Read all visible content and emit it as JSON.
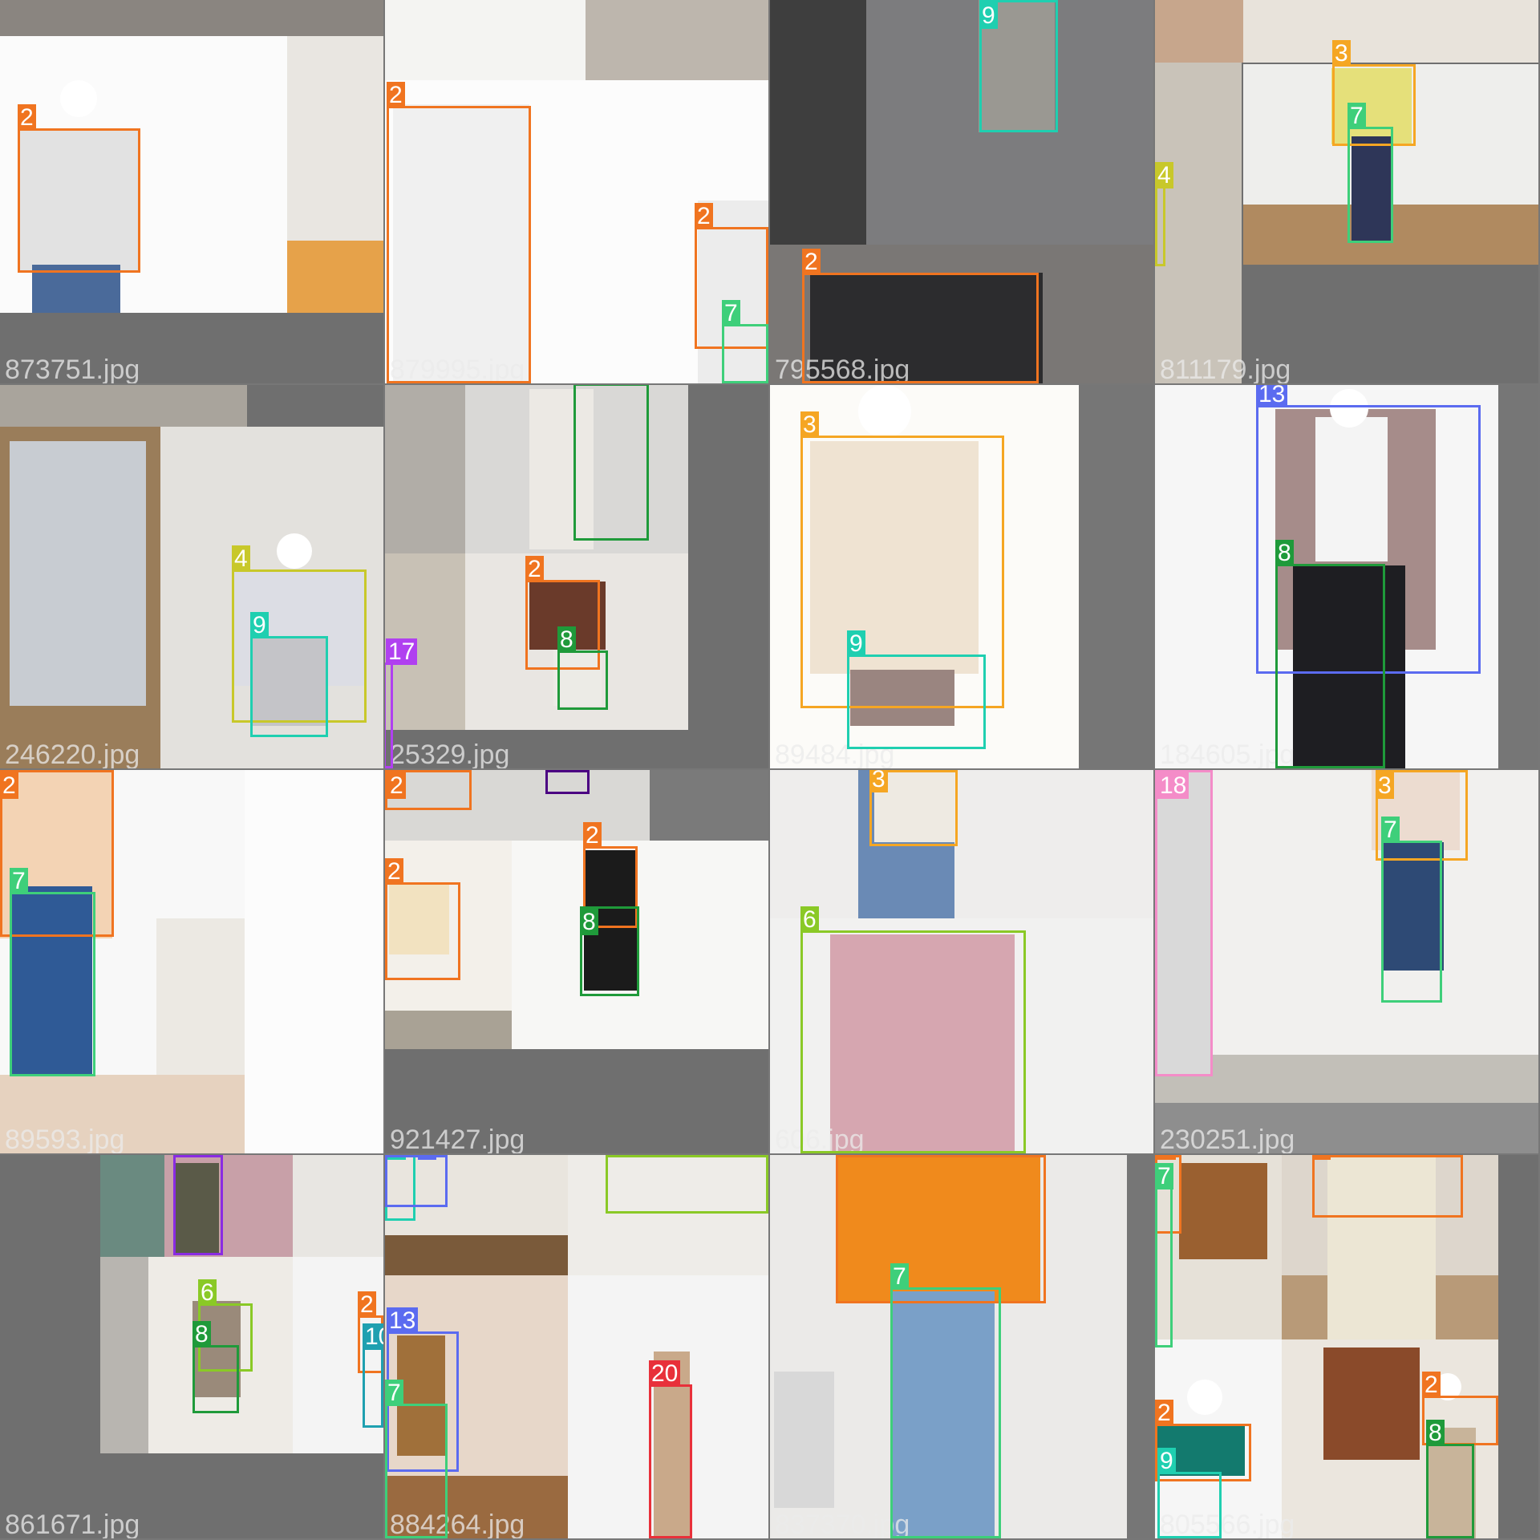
{
  "tiles": [
    {
      "filename": "873751.jpg"
    },
    {
      "filename": "879995.jpg"
    },
    {
      "filename": "795568.jpg"
    },
    {
      "filename": "811179.jpg"
    },
    {
      "filename": "246220.jpg"
    },
    {
      "filename": "25329.jpg"
    },
    {
      "filename": "89484.jpg"
    },
    {
      "filename": "184605.jpg"
    },
    {
      "filename": "89593.jpg"
    },
    {
      "filename": "921427.jpg"
    },
    {
      "filename": "606.jpg"
    },
    {
      "filename": "230251.jpg"
    },
    {
      "filename": "861671.jpg"
    },
    {
      "filename": "884264.jpg"
    },
    {
      "filename": "837370.jpg"
    },
    {
      "filename": "805566.jpg"
    }
  ],
  "class_colors": {
    "2": "#f07420",
    "3": "#f5a623",
    "4": "#c8c82a",
    "6": "#8ac926",
    "7": "#3ecf7a",
    "8": "#1f9a3a",
    "9": "#1fcfb0",
    "13": "#5b6bf0",
    "15": "#8a2be2",
    "16": "#4b0082",
    "17": "#b040f0",
    "18": "#f48cc8",
    "20": "#e8303a"
  }
}
